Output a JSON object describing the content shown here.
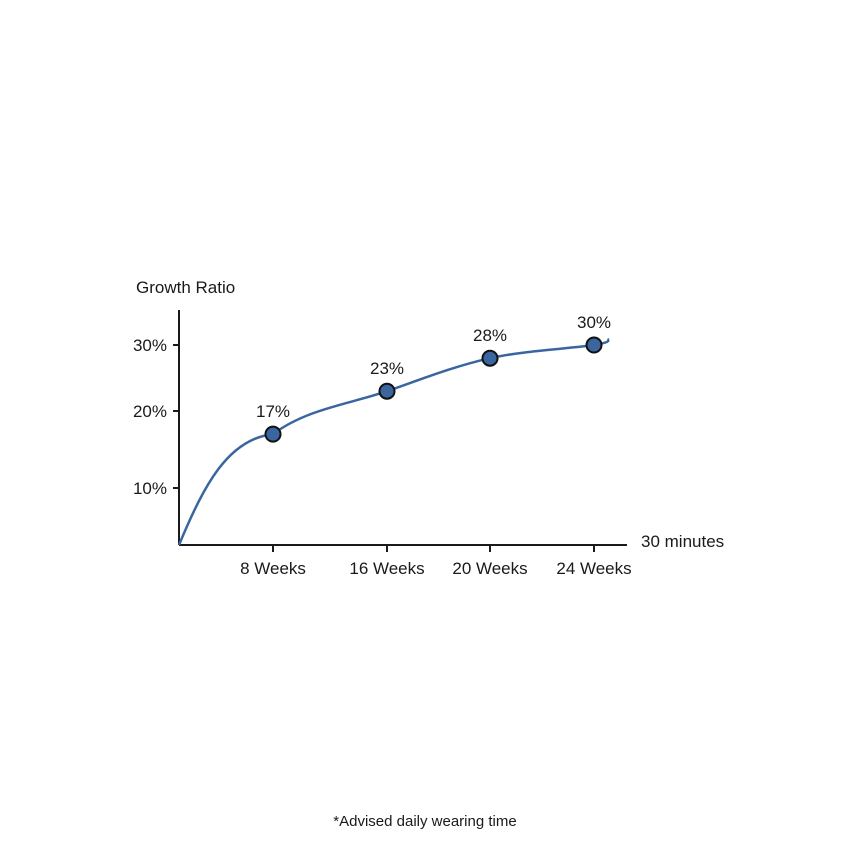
{
  "chart_data": {
    "type": "line",
    "ylabel": "Growth Ratio",
    "xlabel": "30 minutes",
    "categories": [
      "8 Weeks",
      "16 Weeks",
      "20 Weeks",
      "24 Weeks"
    ],
    "values": [
      17,
      23,
      28,
      30
    ],
    "data_labels": [
      "17%",
      "23%",
      "28%",
      "30%"
    ],
    "yticks": [
      10,
      20,
      30
    ],
    "ytick_labels": [
      "10%",
      "20%",
      "30%"
    ],
    "line_color": "#3a66a0",
    "marker_color": "#3a66a0",
    "grid": false,
    "legend": "none"
  },
  "footnote": "*Advised daily wearing time"
}
